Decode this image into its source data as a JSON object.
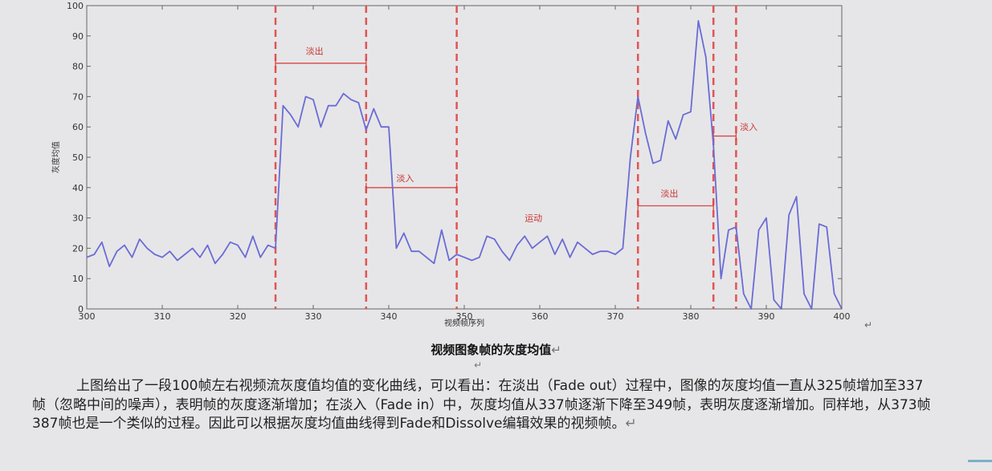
{
  "chart_data": {
    "type": "line",
    "xlabel": "视频帧序列",
    "ylabel": "灰度均值",
    "xlim": [
      300,
      400
    ],
    "ylim": [
      0,
      100
    ],
    "xticks": [
      "300",
      "310",
      "320",
      "330",
      "340",
      "350",
      "360",
      "370",
      "380",
      "390",
      "400"
    ],
    "yticks": [
      "0",
      "10",
      "20",
      "30",
      "40",
      "50",
      "60",
      "70",
      "80",
      "90",
      "100"
    ],
    "series": [
      {
        "color": "#6b6bd6",
        "x": [
          300,
          301,
          302,
          303,
          304,
          305,
          306,
          307,
          308,
          309,
          310,
          311,
          312,
          313,
          314,
          315,
          316,
          317,
          318,
          319,
          320,
          321,
          322,
          323,
          324,
          325,
          326,
          327,
          328,
          329,
          330,
          331,
          332,
          333,
          334,
          335,
          336,
          337,
          338,
          339,
          340,
          341,
          342,
          343,
          344,
          345,
          346,
          347,
          348,
          349,
          350,
          351,
          352,
          353,
          354,
          355,
          356,
          357,
          358,
          359,
          360,
          361,
          362,
          363,
          364,
          365,
          366,
          367,
          368,
          369,
          370,
          371,
          372,
          373,
          374,
          375,
          376,
          377,
          378,
          379,
          380,
          381,
          382,
          383,
          384,
          385,
          386,
          387,
          388,
          389,
          390,
          391,
          392,
          393,
          394,
          395,
          396,
          397,
          398,
          399,
          400
        ],
        "y": [
          17,
          18,
          22,
          14,
          19,
          21,
          17,
          23,
          20,
          18,
          17,
          19,
          16,
          18,
          20,
          17,
          21,
          15,
          18,
          22,
          21,
          17,
          24,
          17,
          21,
          20,
          67,
          64,
          60,
          70,
          69,
          60,
          67,
          67,
          71,
          69,
          68,
          59,
          66,
          60,
          60,
          20,
          25,
          19,
          19,
          17,
          15,
          26,
          16,
          18,
          17,
          16,
          17,
          24,
          23,
          19,
          16,
          21,
          24,
          20,
          22,
          24,
          18,
          23,
          17,
          22,
          20,
          18,
          19,
          19,
          18,
          20,
          50,
          70,
          58,
          48,
          49,
          62,
          56,
          64,
          65,
          95,
          83,
          54,
          10,
          26,
          27,
          5,
          0,
          26,
          30,
          3,
          0,
          31,
          37,
          5,
          0,
          28,
          27,
          5,
          0
        ]
      }
    ],
    "vlines": [
      325,
      337,
      349,
      373,
      383,
      386
    ],
    "annotations": [
      {
        "label": "淡出",
        "from": 325,
        "to": 337,
        "y": 81,
        "text_x": 329,
        "text_y": 84
      },
      {
        "label": "淡入",
        "from": 337,
        "to": 349,
        "y": 40,
        "text_x": 341,
        "text_y": 42
      },
      {
        "label": "运动",
        "text_x": 358,
        "text_y": 29
      },
      {
        "label": "淡出",
        "from": 373,
        "to": 383,
        "y": 34,
        "text_x": 376,
        "text_y": 37
      },
      {
        "label": "淡入",
        "from": 383,
        "to": 386,
        "y": 57,
        "text_x": 386.5,
        "text_y": 59
      }
    ]
  },
  "figure": {
    "caption": "视频图象帧的灰度均值",
    "para_mark": "↵"
  },
  "paragraph": {
    "text": "上图给出了一段100帧左右视频流灰度值均值的变化曲线，可以看出：在淡出（Fade out）过程中，图像的灰度均值一直从325帧增加至337帧（忽略中间的噪声），表明帧的灰度逐渐增加；在淡入（Fade in）中，灰度均值从337帧逐渐下降至349帧，表明灰度逐渐增加。同样地，从373帧387帧也是一个类似的过程。因此可以根据灰度均值曲线得到Fade和Dissolve编辑效果的视频帧。"
  }
}
